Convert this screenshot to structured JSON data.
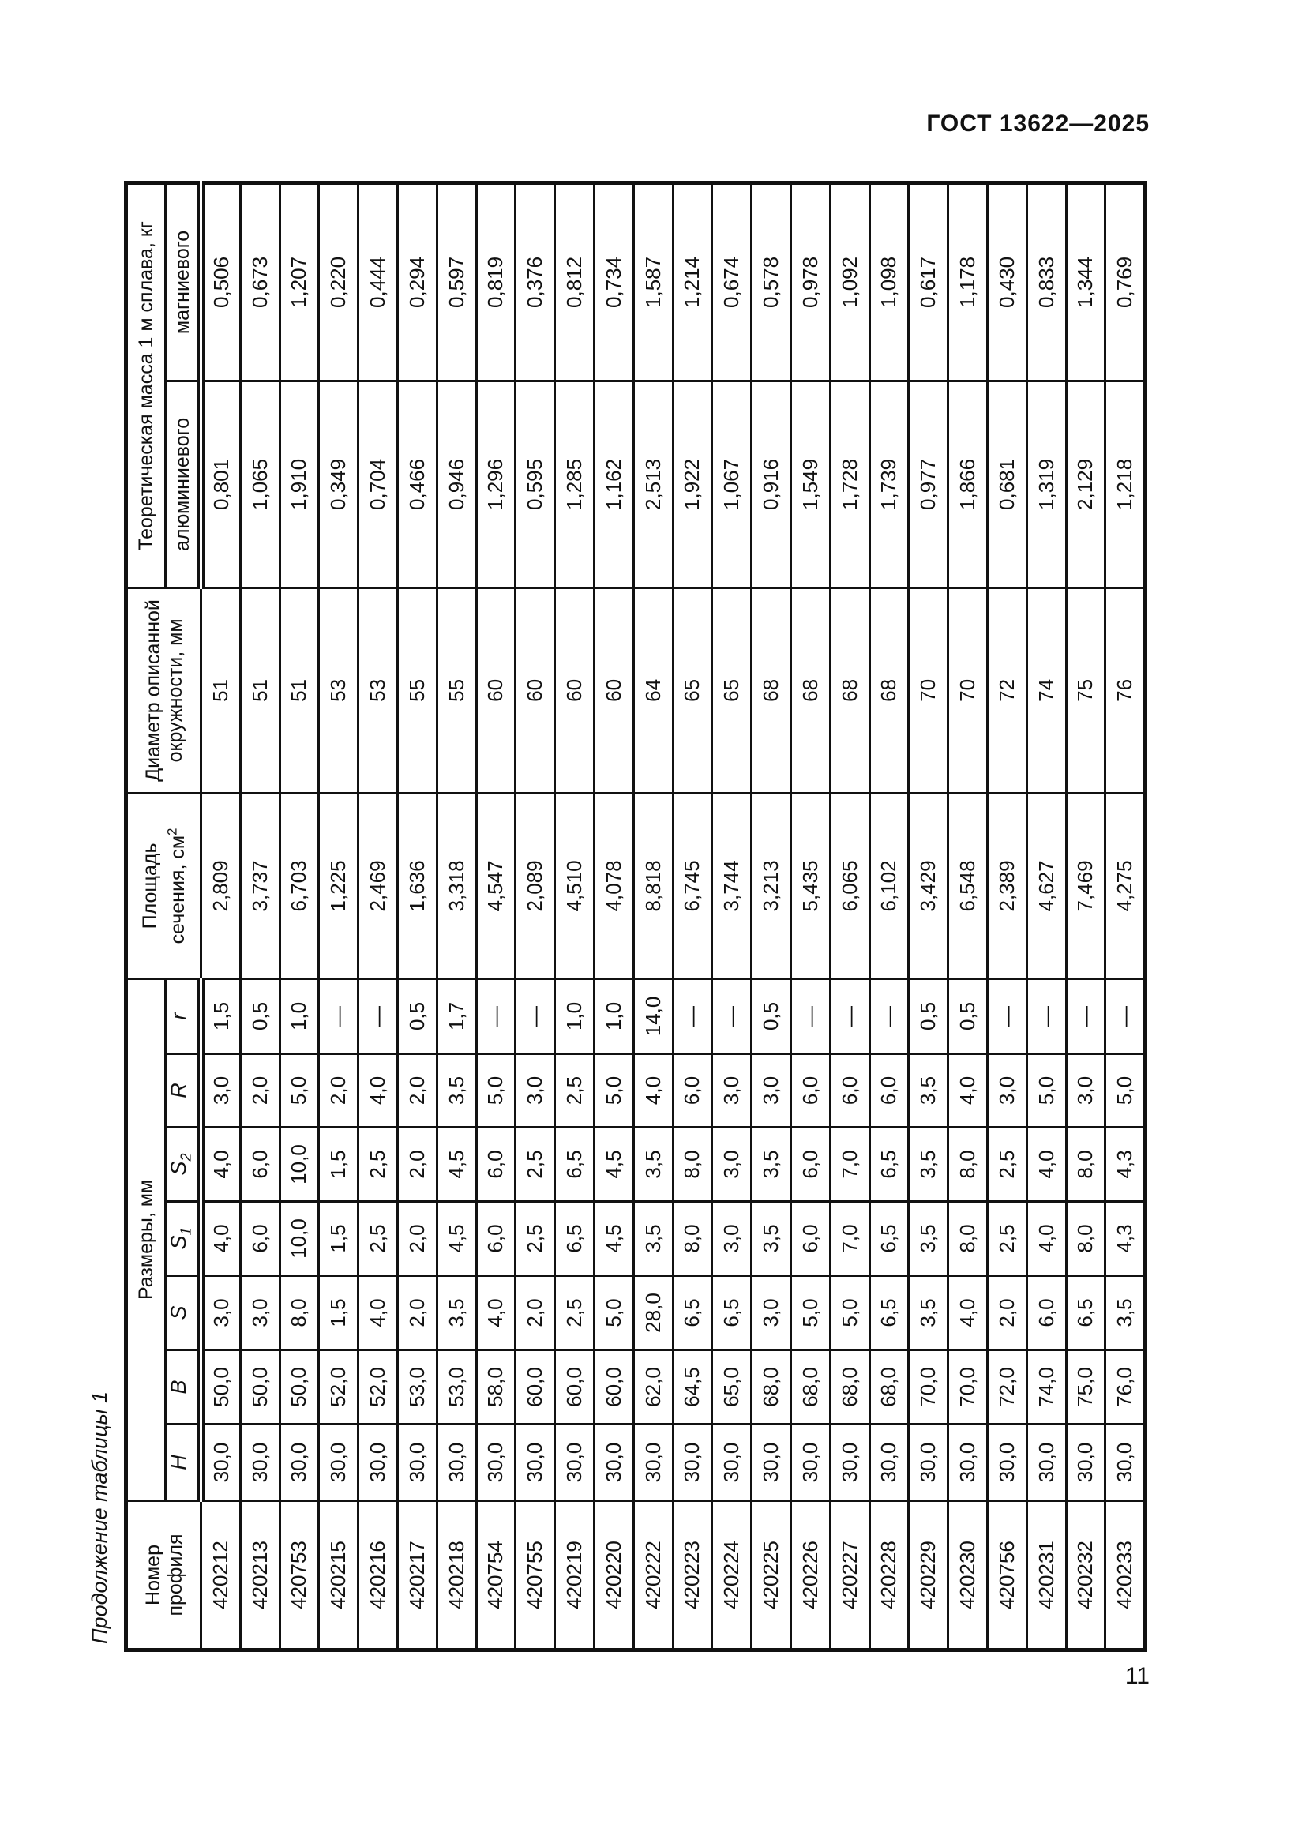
{
  "page": {
    "header": "ГОСТ 13622—2025",
    "page_number": "11",
    "caption": "Продолжение таблицы 1"
  },
  "table": {
    "column_keys": [
      "number",
      "H",
      "B",
      "S",
      "S1",
      "S2",
      "R",
      "r",
      "area",
      "diameter",
      "mass_aluminium",
      "mass_magnesium"
    ],
    "headers": {
      "profile": [
        "Номер",
        "профиля"
      ],
      "dimensions_group": "Размеры, мм",
      "dim_labels": [
        {
          "base": "H"
        },
        {
          "base": "B"
        },
        {
          "base": "S"
        },
        {
          "base": "S",
          "sub": "1"
        },
        {
          "base": "S",
          "sub": "2"
        },
        {
          "base": "R"
        },
        {
          "base": "r"
        }
      ],
      "area": {
        "line1": "Площадь",
        "line2": "сечения, см",
        "sup": "2"
      },
      "diameter": [
        "Диаметр описанной",
        "окружности, мм"
      ],
      "mass_group": "Теоретическая масса 1 м сплава, кг",
      "mass_al": "алюминиевого",
      "mass_mg": "магниевого"
    },
    "rows": [
      [
        "420212",
        "30,0",
        "50,0",
        "3,0",
        "4,0",
        "4,0",
        "3,0",
        "1,5",
        "2,809",
        "51",
        "0,801",
        "0,506"
      ],
      [
        "420213",
        "30,0",
        "50,0",
        "3,0",
        "6,0",
        "6,0",
        "2,0",
        "0,5",
        "3,737",
        "51",
        "1,065",
        "0,673"
      ],
      [
        "420753",
        "30,0",
        "50,0",
        "8,0",
        "10,0",
        "10,0",
        "5,0",
        "1,0",
        "6,703",
        "51",
        "1,910",
        "1,207"
      ],
      [
        "420215",
        "30,0",
        "52,0",
        "1,5",
        "1,5",
        "1,5",
        "2,0",
        "—",
        "1,225",
        "53",
        "0,349",
        "0,220"
      ],
      [
        "420216",
        "30,0",
        "52,0",
        "4,0",
        "2,5",
        "2,5",
        "4,0",
        "—",
        "2,469",
        "53",
        "0,704",
        "0,444"
      ],
      [
        "420217",
        "30,0",
        "53,0",
        "2,0",
        "2,0",
        "2,0",
        "2,0",
        "0,5",
        "1,636",
        "55",
        "0,466",
        "0,294"
      ],
      [
        "420218",
        "30,0",
        "53,0",
        "3,5",
        "4,5",
        "4,5",
        "3,5",
        "1,7",
        "3,318",
        "55",
        "0,946",
        "0,597"
      ],
      [
        "420754",
        "30,0",
        "58,0",
        "4,0",
        "6,0",
        "6,0",
        "5,0",
        "—",
        "4,547",
        "60",
        "1,296",
        "0,819"
      ],
      [
        "420755",
        "30,0",
        "60,0",
        "2,0",
        "2,5",
        "2,5",
        "3,0",
        "—",
        "2,089",
        "60",
        "0,595",
        "0,376"
      ],
      [
        "420219",
        "30,0",
        "60,0",
        "2,5",
        "6,5",
        "6,5",
        "2,5",
        "1,0",
        "4,510",
        "60",
        "1,285",
        "0,812"
      ],
      [
        "420220",
        "30,0",
        "60,0",
        "5,0",
        "4,5",
        "4,5",
        "5,0",
        "1,0",
        "4,078",
        "60",
        "1,162",
        "0,734"
      ],
      [
        "420222",
        "30,0",
        "62,0",
        "28,0",
        "3,5",
        "3,5",
        "4,0",
        "14,0",
        "8,818",
        "64",
        "2,513",
        "1,587"
      ],
      [
        "420223",
        "30,0",
        "64,5",
        "6,5",
        "8,0",
        "8,0",
        "6,0",
        "—",
        "6,745",
        "65",
        "1,922",
        "1,214"
      ],
      [
        "420224",
        "30,0",
        "65,0",
        "6,5",
        "3,0",
        "3,0",
        "3,0",
        "—",
        "3,744",
        "65",
        "1,067",
        "0,674"
      ],
      [
        "420225",
        "30,0",
        "68,0",
        "3,0",
        "3,5",
        "3,5",
        "3,0",
        "0,5",
        "3,213",
        "68",
        "0,916",
        "0,578"
      ],
      [
        "420226",
        "30,0",
        "68,0",
        "5,0",
        "6,0",
        "6,0",
        "6,0",
        "—",
        "5,435",
        "68",
        "1,549",
        "0,978"
      ],
      [
        "420227",
        "30,0",
        "68,0",
        "5,0",
        "7,0",
        "7,0",
        "6,0",
        "—",
        "6,065",
        "68",
        "1,728",
        "1,092"
      ],
      [
        "420228",
        "30,0",
        "68,0",
        "6,5",
        "6,5",
        "6,5",
        "6,0",
        "—",
        "6,102",
        "68",
        "1,739",
        "1,098"
      ],
      [
        "420229",
        "30,0",
        "70,0",
        "3,5",
        "3,5",
        "3,5",
        "3,5",
        "0,5",
        "3,429",
        "70",
        "0,977",
        "0,617"
      ],
      [
        "420230",
        "30,0",
        "70,0",
        "4,0",
        "8,0",
        "8,0",
        "4,0",
        "0,5",
        "6,548",
        "70",
        "1,866",
        "1,178"
      ],
      [
        "420756",
        "30,0",
        "72,0",
        "2,0",
        "2,5",
        "2,5",
        "3,0",
        "—",
        "2,389",
        "72",
        "0,681",
        "0,430"
      ],
      [
        "420231",
        "30,0",
        "74,0",
        "6,0",
        "4,0",
        "4,0",
        "5,0",
        "—",
        "4,627",
        "74",
        "1,319",
        "0,833"
      ],
      [
        "420232",
        "30,0",
        "75,0",
        "6,5",
        "8,0",
        "8,0",
        "3,0",
        "—",
        "7,469",
        "75",
        "2,129",
        "1,344"
      ],
      [
        "420233",
        "30,0",
        "76,0",
        "3,5",
        "4,3",
        "4,3",
        "5,0",
        "—",
        "4,275",
        "76",
        "1,218",
        "0,769"
      ]
    ]
  }
}
